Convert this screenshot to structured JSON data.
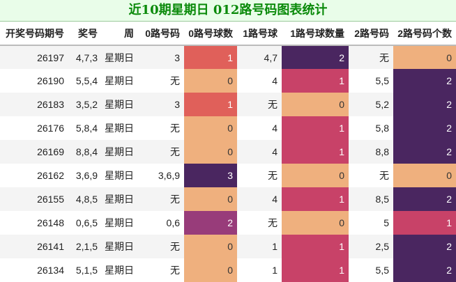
{
  "title": "近10期星期日 012路号码图表统计",
  "headers": [
    "开奖号码期号",
    "奖号",
    "周",
    "0路号码",
    "0路号球数",
    "1路号球",
    "1路号球数量",
    "2路号码",
    "2路号码个数"
  ],
  "rows": [
    {
      "issue": "26197",
      "nums": "4,7,3",
      "weekday": "星期日",
      "r0": "3",
      "r0n": "1",
      "r1": "4,7",
      "r1n": "2",
      "r2": "无",
      "r2n": "0"
    },
    {
      "issue": "26190",
      "nums": "5,5,4",
      "weekday": "星期日",
      "r0": "无",
      "r0n": "0",
      "r1": "4",
      "r1n": "1",
      "r2": "5,5",
      "r2n": "2"
    },
    {
      "issue": "26183",
      "nums": "3,5,2",
      "weekday": "星期日",
      "r0": "3",
      "r0n": "1",
      "r1": "无",
      "r1n": "0",
      "r2": "5,2",
      "r2n": "2"
    },
    {
      "issue": "26176",
      "nums": "5,8,4",
      "weekday": "星期日",
      "r0": "无",
      "r0n": "0",
      "r1": "4",
      "r1n": "1",
      "r2": "5,8",
      "r2n": "2"
    },
    {
      "issue": "26169",
      "nums": "8,8,4",
      "weekday": "星期日",
      "r0": "无",
      "r0n": "0",
      "r1": "4",
      "r1n": "1",
      "r2": "8,8",
      "r2n": "2"
    },
    {
      "issue": "26162",
      "nums": "3,6,9",
      "weekday": "星期日",
      "r0": "3,6,9",
      "r0n": "3",
      "r1": "无",
      "r1n": "0",
      "r2": "无",
      "r2n": "0"
    },
    {
      "issue": "26155",
      "nums": "4,8,5",
      "weekday": "星期日",
      "r0": "无",
      "r0n": "0",
      "r1": "4",
      "r1n": "1",
      "r2": "8,5",
      "r2n": "2"
    },
    {
      "issue": "26148",
      "nums": "0,6,5",
      "weekday": "星期日",
      "r0": "0,6",
      "r0n": "2",
      "r1": "无",
      "r1n": "0",
      "r2": "5",
      "r2n": "1"
    },
    {
      "issue": "26141",
      "nums": "2,1,5",
      "weekday": "星期日",
      "r0": "无",
      "r0n": "0",
      "r1": "1",
      "r1n": "1",
      "r2": "2,5",
      "r2n": "2"
    },
    {
      "issue": "26134",
      "nums": "5,1,5",
      "weekday": "星期日",
      "r0": "无",
      "r0n": "0",
      "r1": "1",
      "r1n": "1",
      "r2": "5,5",
      "r2n": "2"
    }
  ],
  "colors": {
    "r0": {
      "0": "#efb07e",
      "1": "#e0605a",
      "2": "#983c7a",
      "3": "#4a2660"
    },
    "r1": {
      "0": "#efb07e",
      "1": "#c84268",
      "2": "#4a2660"
    },
    "r2": {
      "0": "#efb07e",
      "1": "#c84268",
      "2": "#4a2660"
    }
  }
}
